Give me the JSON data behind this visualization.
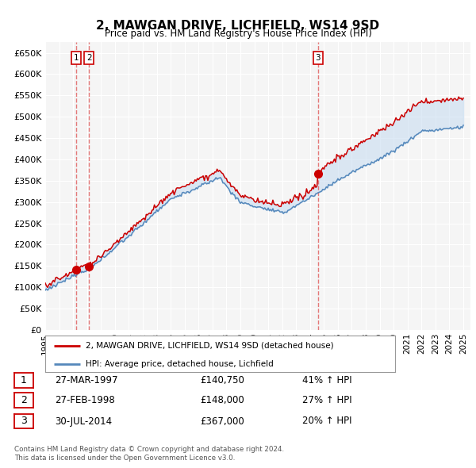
{
  "title": "2, MAWGAN DRIVE, LICHFIELD, WS14 9SD",
  "subtitle": "Price paid vs. HM Land Registry's House Price Index (HPI)",
  "ylim": [
    0,
    675000
  ],
  "yticks": [
    0,
    50000,
    100000,
    150000,
    200000,
    250000,
    300000,
    350000,
    400000,
    450000,
    500000,
    550000,
    600000,
    650000
  ],
  "ytick_labels": [
    "£0",
    "£50K",
    "£100K",
    "£150K",
    "£200K",
    "£250K",
    "£300K",
    "£350K",
    "£400K",
    "£450K",
    "£500K",
    "£550K",
    "£600K",
    "£650K"
  ],
  "xlim_start": 1995.0,
  "xlim_end": 2025.5,
  "background_color": "#ffffff",
  "plot_bg_color": "#f5f5f5",
  "grid_color": "#ffffff",
  "red_line_color": "#cc0000",
  "blue_line_color": "#5588bb",
  "fill_color": "#c8ddf0",
  "marker_color": "#cc0000",
  "dashed_color": "#dd4444",
  "legend_label_red": "2, MAWGAN DRIVE, LICHFIELD, WS14 9SD (detached house)",
  "legend_label_blue": "HPI: Average price, detached house, Lichfield",
  "transaction_labels": [
    "1",
    "2",
    "3"
  ],
  "transaction_dates": [
    1997.23,
    1998.15,
    2014.58
  ],
  "transaction_prices": [
    140750,
    148000,
    367000
  ],
  "transaction_info": [
    [
      "1",
      "27-MAR-1997",
      "£140,750",
      "41% ↑ HPI"
    ],
    [
      "2",
      "27-FEB-1998",
      "£148,000",
      "27% ↑ HPI"
    ],
    [
      "3",
      "30-JUL-2014",
      "£367,000",
      "20% ↑ HPI"
    ]
  ],
  "footer_line1": "Contains HM Land Registry data © Crown copyright and database right 2024.",
  "footer_line2": "This data is licensed under the Open Government Licence v3.0.",
  "sale1_year": 1997.23,
  "sale2_year": 1998.15,
  "sale3_year": 2014.58
}
